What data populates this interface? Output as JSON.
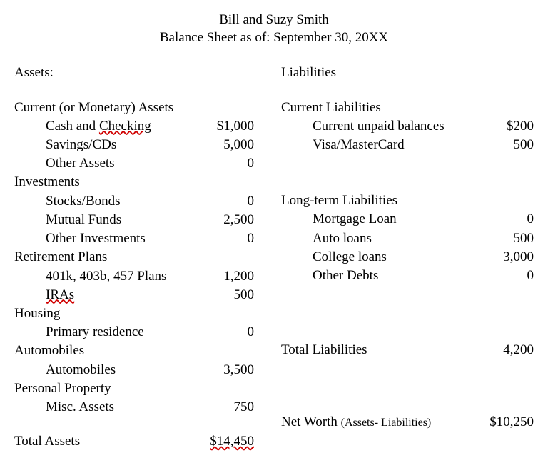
{
  "title": {
    "name": "Bill and Suzy Smith",
    "subtitle": "Balance Sheet as of: September 30, 20XX"
  },
  "assets": {
    "heading": "Assets:",
    "sections": {
      "current": {
        "label": "Current (or Monetary) Assets",
        "items": [
          {
            "label": "Cash and Checking",
            "value": "$1,000",
            "underline_word": "Checking"
          },
          {
            "label": "Savings/CDs",
            "value": "5,000"
          },
          {
            "label": "Other Assets",
            "value": "0"
          }
        ]
      },
      "investments": {
        "label": "Investments",
        "items": [
          {
            "label": "Stocks/Bonds",
            "value": "0"
          },
          {
            "label": "Mutual Funds",
            "value": "2,500"
          },
          {
            "label": "Other Investments",
            "value": "0"
          }
        ]
      },
      "retirement": {
        "label": "Retirement Plans",
        "items": [
          {
            "label": "401k, 403b, 457 Plans",
            "value": "1,200"
          },
          {
            "label": "IRAs",
            "value": "500",
            "underline": true
          }
        ]
      },
      "housing": {
        "label": "Housing",
        "items": [
          {
            "label": "Primary residence",
            "value": "0"
          }
        ]
      },
      "automobiles": {
        "label": "Automobiles",
        "items": [
          {
            "label": "Automobiles",
            "value": "3,500"
          }
        ]
      },
      "personal": {
        "label": "Personal Property",
        "items": [
          {
            "label": "Misc. Assets",
            "value": "750"
          }
        ]
      }
    },
    "total": {
      "label": "Total Assets",
      "value": "$14,450",
      "underline_value": true
    }
  },
  "liabilities": {
    "heading": "Liabilities",
    "sections": {
      "current": {
        "label": "Current Liabilities",
        "items": [
          {
            "label": "Current unpaid balances",
            "value": "$200"
          },
          {
            "label": "Visa/MasterCard",
            "value": "500"
          }
        ]
      },
      "longterm": {
        "label": "Long-term Liabilities",
        "items": [
          {
            "label": "Mortgage Loan",
            "value": "0"
          },
          {
            "label": "Auto loans",
            "value": "500"
          },
          {
            "label": "College loans",
            "value": "3,000"
          },
          {
            "label": "Other Debts",
            "value": "0"
          }
        ]
      }
    },
    "total": {
      "label": "Total Liabilities",
      "value": "4,200"
    }
  },
  "networth": {
    "label": "Net Worth",
    "note": "(Assets- Liabilities)",
    "value": "$10,250"
  },
  "style": {
    "font_family": "Times New Roman",
    "font_size_pt": 14,
    "text_color": "#000000",
    "background_color": "#ffffff",
    "underline_color": "#d00000"
  }
}
